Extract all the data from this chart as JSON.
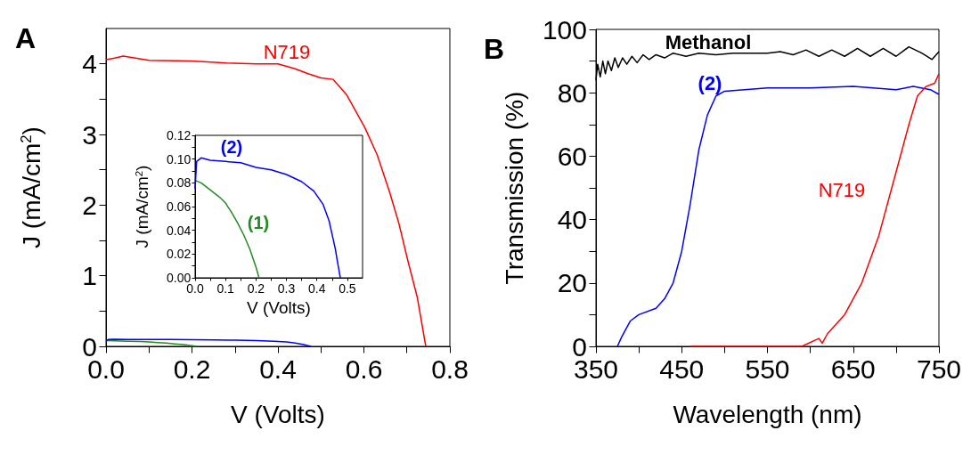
{
  "chart_data": [
    {
      "type": "line",
      "title": "A",
      "xlabel": "V (Volts)",
      "ylabel": "J (mA/cm$^{2}$)",
      "marker": "none",
      "xlim": [
        0,
        0.8
      ],
      "xticks": [
        {
          "value": 0,
          "label": "0.0"
        },
        {
          "value": 0.1,
          "label": null
        },
        {
          "value": 0.2,
          "label": "0.2"
        },
        {
          "value": 0.3,
          "label": null
        },
        {
          "value": 0.4,
          "label": "0.4"
        },
        {
          "value": 0.5,
          "label": null
        },
        {
          "value": 0.6,
          "label": "0.6"
        },
        {
          "value": 0.7,
          "label": null
        },
        {
          "value": 0.8,
          "label": "0.8"
        }
      ],
      "ylim": [
        0,
        4.5
      ],
      "yticks": [
        0,
        {
          "value": 0.5,
          "label": null
        },
        1,
        {
          "value": 1.5,
          "label": null
        },
        2,
        {
          "value": 2.5,
          "label": null
        },
        3,
        {
          "value": 3.5,
          "label": null
        },
        4
      ],
      "series": [
        {
          "name": "N719",
          "color": "#ff0000",
          "x": [
            0,
            0.02,
            0.04,
            0.1,
            0.2,
            0.28,
            0.35,
            0.4,
            0.44,
            0.47,
            0.5,
            0.528,
            0.56,
            0.602,
            0.631,
            0.66,
            0.681,
            0.702,
            0.724,
            0.744
          ],
          "values": [
            4.06,
            4.08,
            4.11,
            4.05,
            4.04,
            4.01,
            4.0,
            4.0,
            3.93,
            3.86,
            3.8,
            3.78,
            3.56,
            3.1,
            2.71,
            2.18,
            1.75,
            1.22,
            0.7,
            0
          ]
        },
        {
          "color": "#228b22",
          "x": [
            0,
            0.02,
            0.05,
            0.08,
            0.1,
            0.12,
            0.14,
            0.16,
            0.18,
            0.2,
            0.21
          ],
          "values": [
            0.082,
            0.08,
            0.074,
            0.068,
            0.063,
            0.055,
            0.046,
            0.036,
            0.024,
            0.009,
            0
          ]
        },
        {
          "color": "#0000ff",
          "x": [
            0,
            0.005,
            0.02,
            0.05,
            0.1,
            0.15,
            0.2,
            0.25,
            0.3,
            0.35,
            0.39,
            0.42,
            0.44,
            0.46,
            0.47,
            0.477
          ],
          "values": [
            0.075,
            0.098,
            0.101,
            0.099,
            0.098,
            0.097,
            0.093,
            0.091,
            0.087,
            0.081,
            0.073,
            0.062,
            0.048,
            0.025,
            0.01,
            0
          ]
        }
      ]
    },
    {
      "type": "line",
      "xlabel": "V (Volts)",
      "ylabel": "J (mA/cm$^{2}$)",
      "marker": "none",
      "xlim": [
        0,
        0.55
      ],
      "xticks": [
        {
          "value": 0,
          "label": "0.0"
        },
        {
          "value": 0.05,
          "label": null
        },
        0.1,
        {
          "value": 0.15,
          "label": null
        },
        0.2,
        {
          "value": 0.25,
          "label": null
        },
        0.3,
        {
          "value": 0.35,
          "label": null
        },
        0.4,
        {
          "value": 0.45,
          "label": null
        },
        0.5
      ],
      "ylim": [
        0,
        0.12
      ],
      "yticks": [
        {
          "value": 0,
          "label": "0.00"
        },
        {
          "value": 0.01,
          "label": null
        },
        {
          "value": 0.02,
          "label": "0.02"
        },
        {
          "value": 0.03,
          "label": null
        },
        {
          "value": 0.04,
          "label": "0.04"
        },
        {
          "value": 0.05,
          "label": null
        },
        {
          "value": 0.06,
          "label": "0.06"
        },
        {
          "value": 0.07,
          "label": null
        },
        {
          "value": 0.08,
          "label": "0.08"
        },
        {
          "value": 0.09,
          "label": null
        },
        {
          "value": 0.1,
          "label": "0.10"
        },
        {
          "value": 0.11,
          "label": null
        },
        {
          "value": 0.12,
          "label": "0.12"
        }
      ],
      "series": [
        {
          "name": "(1)",
          "color": "#228b22",
          "x": [
            0,
            0.02,
            0.05,
            0.08,
            0.1,
            0.12,
            0.14,
            0.16,
            0.18,
            0.2,
            0.21
          ],
          "values": [
            0.082,
            0.08,
            0.074,
            0.068,
            0.063,
            0.055,
            0.046,
            0.036,
            0.024,
            0.009,
            0
          ]
        },
        {
          "name": "(2)",
          "color": "#0000ff",
          "x": [
            0,
            0.005,
            0.02,
            0.05,
            0.1,
            0.15,
            0.2,
            0.25,
            0.3,
            0.35,
            0.39,
            0.42,
            0.44,
            0.46,
            0.47,
            0.477
          ],
          "values": [
            0.075,
            0.098,
            0.101,
            0.099,
            0.098,
            0.097,
            0.093,
            0.091,
            0.087,
            0.081,
            0.073,
            0.062,
            0.048,
            0.025,
            0.01,
            0
          ]
        }
      ]
    },
    {
      "type": "line",
      "title": "B",
      "xlabel": "Wavelength (nm)",
      "ylabel": "Transmission (%)",
      "marker": "none",
      "xlim": [
        350,
        750
      ],
      "xticks": [
        350,
        {
          "value": 400,
          "label": null
        },
        450,
        {
          "value": 500,
          "label": null
        },
        550,
        {
          "value": 600,
          "label": null
        },
        650,
        {
          "value": 700,
          "label": null
        },
        750
      ],
      "ylim": [
        0,
        100
      ],
      "yticks": [
        0,
        {
          "value": 10,
          "label": null
        },
        20,
        {
          "value": 30,
          "label": null
        },
        40,
        {
          "value": 50,
          "label": null
        },
        60,
        {
          "value": 70,
          "label": null
        },
        80,
        {
          "value": 90,
          "label": null
        },
        100
      ],
      "series": [
        {
          "name": "Methanol",
          "color": "#000000",
          "x": [
            350,
            352,
            355,
            358,
            361,
            364,
            368,
            372,
            376,
            381,
            386,
            392,
            398,
            405,
            412,
            420,
            430,
            440,
            455,
            470,
            490,
            510,
            530,
            550,
            565,
            580,
            595,
            610,
            625,
            640,
            655,
            670,
            685,
            700,
            715,
            730,
            742,
            750
          ],
          "values": [
            84,
            89,
            85,
            90,
            86,
            90,
            87,
            91,
            88,
            91,
            89,
            91.5,
            89.5,
            92,
            90.5,
            92,
            91,
            92.5,
            91.5,
            92.5,
            92,
            92.5,
            92.5,
            92.5,
            93,
            92,
            93.5,
            91.5,
            93.5,
            91.5,
            94,
            91.5,
            94,
            91.5,
            94.5,
            92.5,
            90.5,
            93
          ]
        },
        {
          "name": "(2)",
          "color": "#0000ff",
          "x": [
            375,
            380,
            390,
            400,
            420,
            430,
            440,
            450,
            460,
            470,
            480,
            490,
            500,
            550,
            600,
            650,
            700,
            720,
            740,
            750
          ],
          "values": [
            0,
            3,
            8,
            10,
            12,
            15,
            20,
            30,
            45,
            62,
            73,
            79,
            80.5,
            81.5,
            81.5,
            82,
            81,
            82,
            81,
            79.5
          ]
        },
        {
          "name": "N719",
          "color": "#ff0000",
          "x": [
            460,
            590,
            610,
            614,
            620,
            640,
            660,
            680,
            700,
            715,
            725,
            735,
            745,
            750
          ],
          "values": [
            0,
            0,
            2.5,
            1,
            4,
            10,
            20,
            35,
            55,
            70,
            79,
            82,
            83,
            86
          ]
        }
      ]
    }
  ]
}
